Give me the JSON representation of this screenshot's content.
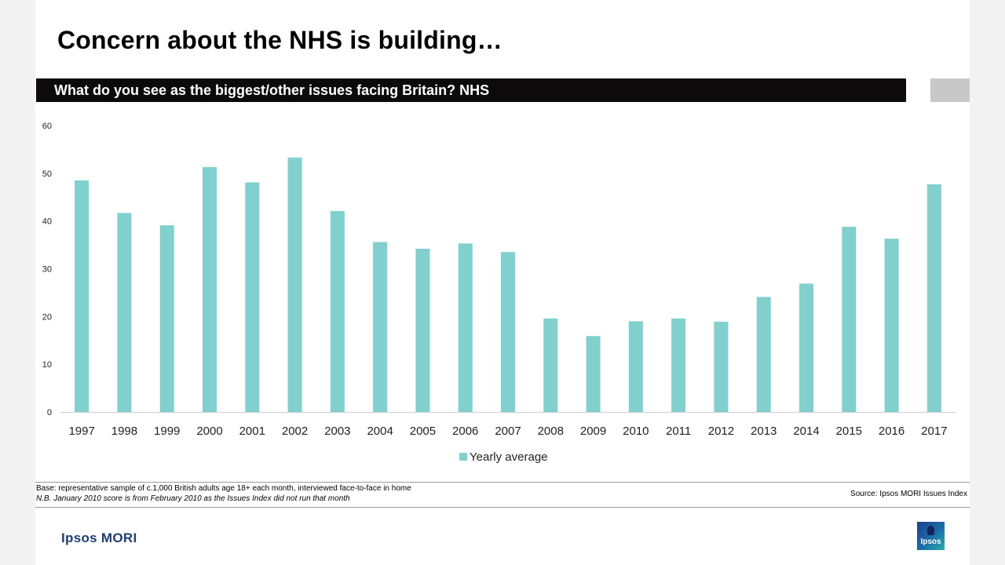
{
  "title": "Concern about the NHS is building…",
  "question": "What do you see as the biggest/other issues facing Britain? NHS",
  "chart_data": {
    "type": "bar",
    "categories": [
      "1997",
      "1998",
      "1999",
      "2000",
      "2001",
      "2002",
      "2003",
      "2004",
      "2005",
      "2006",
      "2007",
      "2008",
      "2009",
      "2010",
      "2011",
      "2012",
      "2013",
      "2014",
      "2015",
      "2016",
      "2017"
    ],
    "series": [
      {
        "name": "Yearly average",
        "color": "#80d0ce",
        "values": [
          48.5,
          41.7,
          39.1,
          51.3,
          48.1,
          53.3,
          42.1,
          35.6,
          34.2,
          35.3,
          33.5,
          19.6,
          15.9,
          19.0,
          19.6,
          18.9,
          24.1,
          26.9,
          38.8,
          36.3,
          47.7
        ]
      }
    ],
    "yticks": [
      0,
      10,
      20,
      30,
      40,
      50,
      60
    ],
    "ylim": [
      0,
      60
    ],
    "xlabel": "",
    "ylabel": "",
    "grid": false,
    "legend_position": "bottom"
  },
  "footer": {
    "base": "Base: representative sample of c.1,000 British adults age 18+ each month, interviewed face-to-face in home",
    "note": "N.B. January 2010 score is from February 2010 as the Issues Index did not run that month",
    "source": "Source: Ipsos MORI Issues Index"
  },
  "brand": "Ipsos MORI",
  "logo_text": "Ipsos"
}
